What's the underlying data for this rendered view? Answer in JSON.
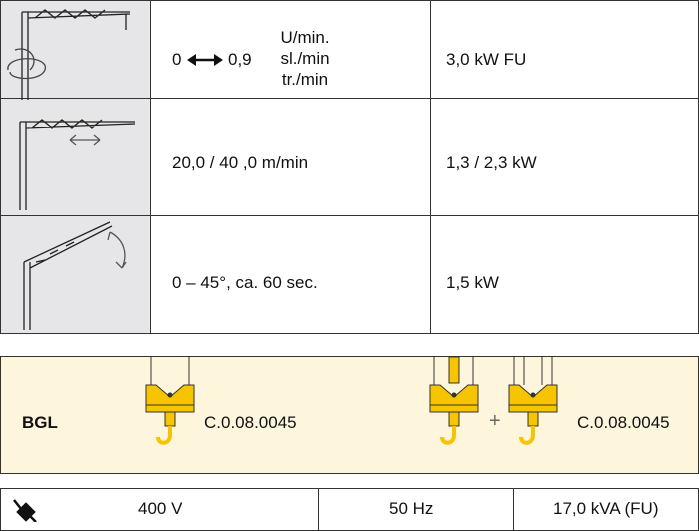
{
  "motions": {
    "rows": [
      {
        "speed_from": "0",
        "speed_to": "0,9",
        "units": [
          "U/min.",
          "sl./min",
          "tr./min"
        ],
        "power": "3,0 kW FU"
      },
      {
        "speed": "20,0 / 40 ,0 m/min",
        "power": "1,3 / 2,3 kW"
      },
      {
        "speed": "0 – 45°, ca. 60 sec.",
        "power": "1,5 kW"
      }
    ]
  },
  "hooks": {
    "label": "BGL",
    "single_code": "C.0.08.0045",
    "plus": "+",
    "double_code": "C.0.08.0045"
  },
  "power_supply": {
    "voltage": "400 V",
    "frequency": "50 Hz",
    "rating": "17,0 kVA (FU)"
  }
}
